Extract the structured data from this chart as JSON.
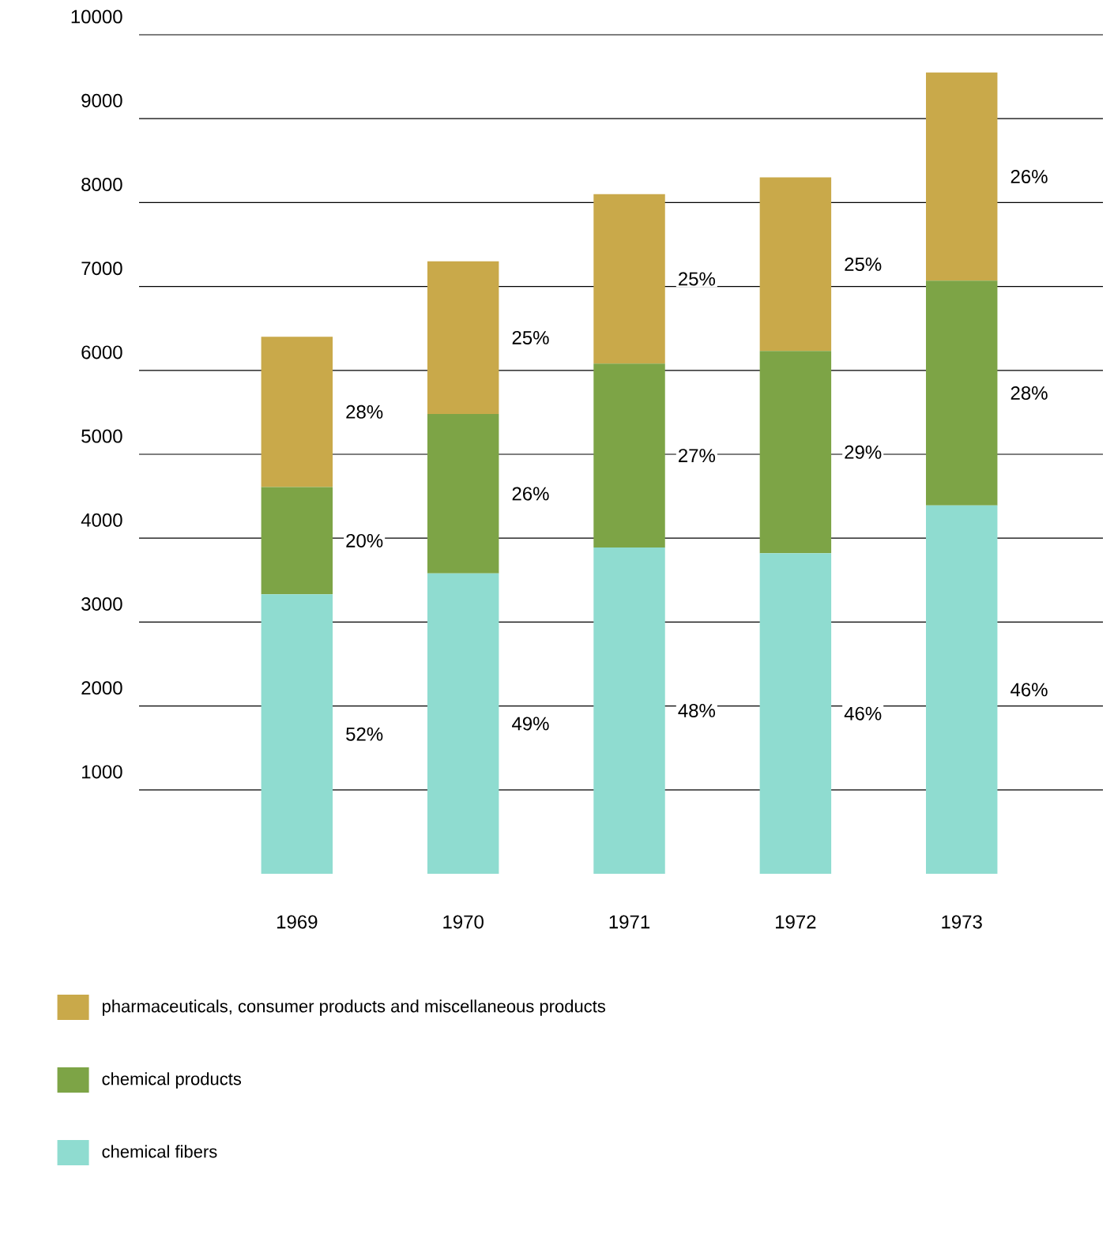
{
  "chart_data": {
    "type": "bar",
    "stacked": true,
    "categories": [
      "1969",
      "1970",
      "1971",
      "1972",
      "1973"
    ],
    "series": [
      {
        "name": "chemical fibers",
        "color": "#8fdcd0",
        "values": [
          3330,
          3580,
          3890,
          3820,
          4390
        ]
      },
      {
        "name": "chemical products",
        "color": "#7da446",
        "values": [
          1280,
          1900,
          2190,
          2410,
          2680
        ]
      },
      {
        "name": "pharmaceuticals, consumer products and miscellaneous products",
        "color": "#c9a94a",
        "values": [
          1790,
          1820,
          2020,
          2070,
          2480
        ]
      }
    ],
    "annotations": [
      "52%",
      "49%",
      "48%",
      "46%",
      "46%",
      "20%",
      "26%",
      "27%",
      "29%",
      "28%",
      "28%",
      "25%",
      "25%",
      "25%",
      "26%"
    ],
    "ylim": [
      0,
      10000
    ],
    "yticks": [
      1000,
      2000,
      3000,
      4000,
      5000,
      6000,
      7000,
      8000,
      9000,
      10000
    ],
    "grid": "y",
    "legend": "bottom"
  }
}
